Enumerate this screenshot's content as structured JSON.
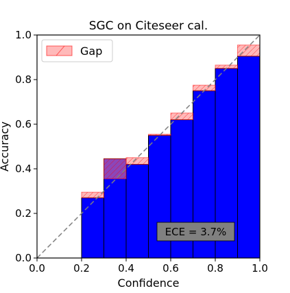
{
  "chart_data": {
    "type": "bar",
    "title": "SGC on Citeseer cal.",
    "xlabel": "Confidence",
    "ylabel": "Accuracy",
    "xlim": [
      0.0,
      1.0
    ],
    "ylim": [
      0.0,
      1.0
    ],
    "x_ticks": [
      "0.0",
      "0.2",
      "0.4",
      "0.6",
      "0.8",
      "1.0"
    ],
    "y_ticks": [
      "0.0",
      "0.2",
      "0.4",
      "0.6",
      "0.8",
      "1.0"
    ],
    "bin_edges": [
      0.0,
      0.1,
      0.2,
      0.3,
      0.4,
      0.5,
      0.6,
      0.7,
      0.8,
      0.9,
      1.0
    ],
    "accuracy": [
      0.0,
      0.0,
      0.27,
      0.445,
      0.42,
      0.55,
      0.62,
      0.75,
      0.85,
      0.905
    ],
    "expected_confidence": [
      0.0,
      0.0,
      0.295,
      0.355,
      0.45,
      0.555,
      0.65,
      0.775,
      0.865,
      0.955
    ],
    "legend": {
      "label": "Gap",
      "placement": "upper-left"
    },
    "annotation": "ECE = 3.7%",
    "grid": false,
    "diagonal": "dashed",
    "colors": {
      "accuracy_fill": "#0000ff",
      "gap_fill": "#ff8080",
      "gap_stroke": "#ff0000",
      "bar_edge": "#000000",
      "diagonal": "#808080",
      "annotation_bg": "#808080"
    }
  }
}
